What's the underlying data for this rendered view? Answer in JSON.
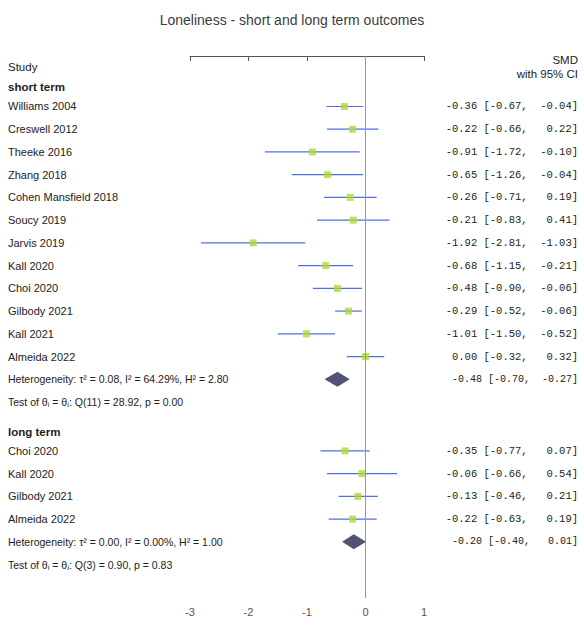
{
  "chart_data": {
    "type": "forest",
    "title": "Loneliness - short and long term outcomes",
    "column_headers": {
      "left": "Study",
      "right": [
        "SMD",
        "with 95% CI"
      ]
    },
    "groups": [
      {
        "label": "short term",
        "studies": [
          {
            "name": "Williams 2004",
            "smd": -0.36,
            "ci_lo": -0.67,
            "ci_hi": -0.04,
            "ci_label": "-0.36 [-0.67,  -0.04]"
          },
          {
            "name": "Creswell 2012",
            "smd": -0.22,
            "ci_lo": -0.66,
            "ci_hi": 0.22,
            "ci_label": "-0.22 [-0.66,   0.22]"
          },
          {
            "name": "Theeke 2016",
            "smd": -0.91,
            "ci_lo": -1.72,
            "ci_hi": -0.1,
            "ci_label": "-0.91 [-1.72,  -0.10]"
          },
          {
            "name": "Zhang 2018",
            "smd": -0.65,
            "ci_lo": -1.26,
            "ci_hi": -0.04,
            "ci_label": "-0.65 [-1.26,  -0.04]"
          },
          {
            "name": "Cohen Mansfield 2018",
            "smd": -0.26,
            "ci_lo": -0.71,
            "ci_hi": 0.19,
            "ci_label": "-0.26 [-0.71,   0.19]"
          },
          {
            "name": "Soucy 2019",
            "smd": -0.21,
            "ci_lo": -0.83,
            "ci_hi": 0.41,
            "ci_label": "-0.21 [-0.83,   0.41]"
          },
          {
            "name": "Jarvis 2019",
            "smd": -1.92,
            "ci_lo": -2.81,
            "ci_hi": -1.03,
            "ci_label": "-1.92 [-2.81,  -1.03]"
          },
          {
            "name": "Kall 2020",
            "smd": -0.68,
            "ci_lo": -1.15,
            "ci_hi": -0.21,
            "ci_label": "-0.68 [-1.15,  -0.21]"
          },
          {
            "name": "Choi 2020",
            "smd": -0.48,
            "ci_lo": -0.9,
            "ci_hi": -0.06,
            "ci_label": "-0.48 [-0.90,  -0.06]"
          },
          {
            "name": "Gilbody 2021",
            "smd": -0.29,
            "ci_lo": -0.52,
            "ci_hi": -0.06,
            "ci_label": "-0.29 [-0.52,  -0.06]"
          },
          {
            "name": "Kall 2021",
            "smd": -1.01,
            "ci_lo": -1.5,
            "ci_hi": -0.52,
            "ci_label": "-1.01 [-1.50,  -0.52]"
          },
          {
            "name": "Almeida 2022",
            "smd": 0.0,
            "ci_lo": -0.32,
            "ci_hi": 0.32,
            "ci_label": " 0.00 [-0.32,   0.32]"
          }
        ],
        "summary": {
          "label": "Heterogeneity: τ² = 0.08, I² = 64.29%, H² = 2.80",
          "smd": -0.48,
          "ci_lo": -0.7,
          "ci_hi": -0.27,
          "ci_label": "-0.48 [-0.70,  -0.27]"
        },
        "test_text": "Test of θᵢ = θⱼ: Q(11) = 28.92, p = 0.00"
      },
      {
        "label": "long term",
        "studies": [
          {
            "name": "Choi 2020",
            "smd": -0.35,
            "ci_lo": -0.77,
            "ci_hi": 0.07,
            "ci_label": "-0.35 [-0.77,   0.07]"
          },
          {
            "name": "Kall 2020",
            "smd": -0.06,
            "ci_lo": -0.66,
            "ci_hi": 0.54,
            "ci_label": "-0.06 [-0.66,   0.54]"
          },
          {
            "name": "Gilbody 2021",
            "smd": -0.13,
            "ci_lo": -0.46,
            "ci_hi": 0.21,
            "ci_label": "-0.13 [-0.46,   0.21]"
          },
          {
            "name": "Almeida 2022",
            "smd": -0.22,
            "ci_lo": -0.63,
            "ci_hi": 0.19,
            "ci_label": "-0.22 [-0.63,   0.19]"
          }
        ],
        "summary": {
          "label": "Heterogeneity: τ² = 0.00, I² = 0.00%, H² = 1.00",
          "smd": -0.2,
          "ci_lo": -0.4,
          "ci_hi": 0.01,
          "ci_label": "-0.20 [-0.40,   0.01]"
        },
        "test_text": "Test of θᵢ = θⱼ: Q(3) = 0.90, p = 0.83"
      }
    ],
    "xlim": [
      -3.0,
      1.0
    ],
    "xticks": [
      -3,
      -2,
      -1,
      0,
      1
    ],
    "reference_line": 0,
    "grid": false
  }
}
